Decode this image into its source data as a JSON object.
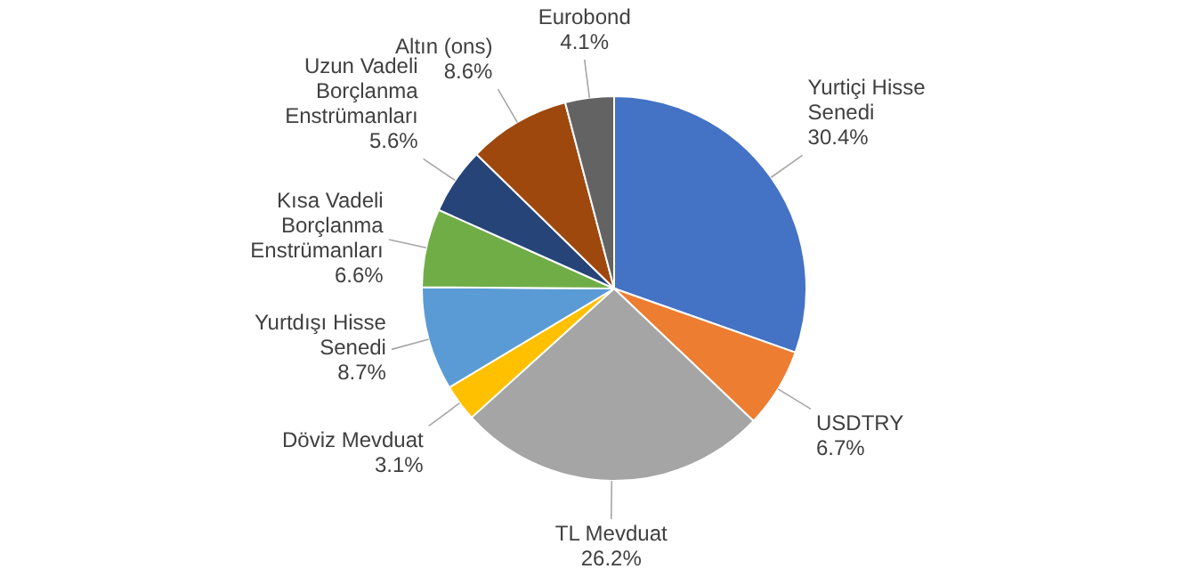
{
  "chart_data": {
    "type": "pie",
    "categories": [
      "Yurtiçi Hisse Senedi",
      "USDTRY",
      "TL Mevduat",
      "Döviz Mevduat",
      "Yurtdışı Hisse Senedi",
      "Kısa Vadeli Borçlanma Enstrümanları",
      "Uzun Vadeli Borçlanma Enstrümanları",
      "Altın (ons)",
      "Eurobond"
    ],
    "values": [
      30.4,
      6.7,
      26.2,
      3.1,
      8.7,
      6.6,
      5.6,
      8.6,
      4.1
    ],
    "value_labels": [
      "30.4%",
      "6.7%",
      "26.2%",
      "3.1%",
      "8.7%",
      "6.6%",
      "5.6%",
      "8.6%",
      "4.1%"
    ],
    "colors": [
      "#4472c4",
      "#ed7d31",
      "#a5a5a5",
      "#ffc000",
      "#5b9bd5",
      "#70ad47",
      "#264478",
      "#9e480e",
      "#636363"
    ]
  }
}
